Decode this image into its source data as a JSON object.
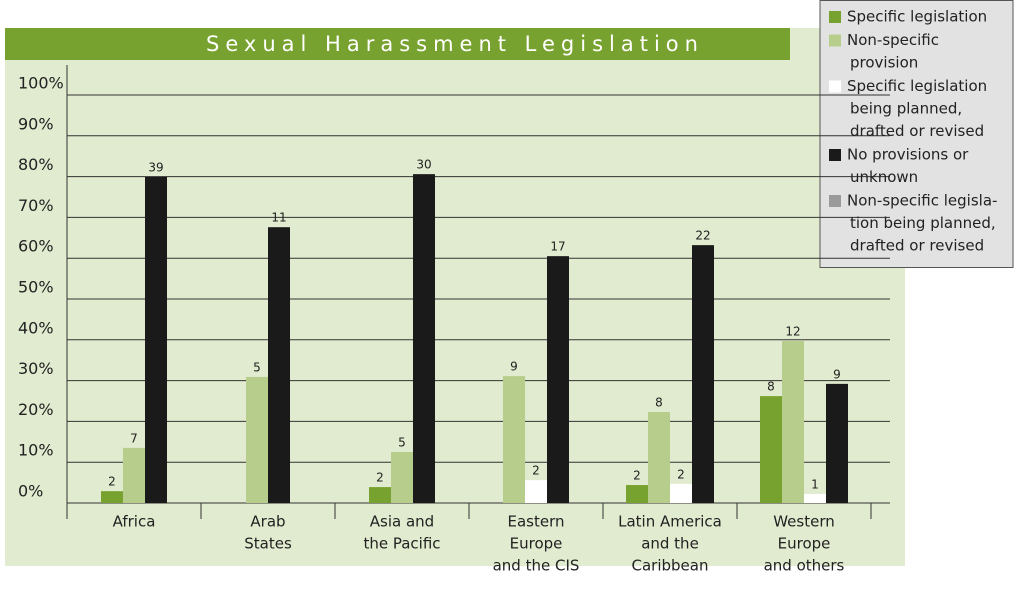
{
  "chart_data": {
    "type": "bar",
    "title": "Sexual Harassment Legislation",
    "categories": [
      [
        "Africa"
      ],
      [
        "Arab",
        "States"
      ],
      [
        "Asia and",
        "the Pacific"
      ],
      [
        "Eastern",
        "Europe",
        "and the CIS"
      ],
      [
        "Latin America",
        "and the",
        "Caribbean"
      ],
      [
        "Western",
        "Europe",
        "and others"
      ]
    ],
    "ylim": [
      0,
      100
    ],
    "yticks": [
      {
        "value": 0,
        "label": "0%"
      },
      {
        "value": 10,
        "label": "10%"
      },
      {
        "value": 20,
        "label": "20%"
      },
      {
        "value": 30,
        "label": "30%"
      },
      {
        "value": 40,
        "label": "40%"
      },
      {
        "value": 50,
        "label": "50%"
      },
      {
        "value": 60,
        "label": "60%"
      },
      {
        "value": 70,
        "label": "70%"
      },
      {
        "value": 80,
        "label": "80%"
      },
      {
        "value": 90,
        "label": "90%"
      },
      {
        "value": 100,
        "label": "100%"
      }
    ],
    "grid": true,
    "legend": "top-right",
    "series": [
      {
        "name": [
          "Specific legislation"
        ],
        "color": "#78a22f",
        "values": [
          2.9,
          null,
          3.9,
          null,
          4.4,
          26.2
        ],
        "counts": [
          2,
          null,
          2,
          null,
          2,
          8
        ]
      },
      {
        "name": [
          "Non-specific",
          "provision"
        ],
        "color": "#b6cd8b",
        "values": [
          13.5,
          30.9,
          12.5,
          31.1,
          22.3,
          39.7
        ],
        "counts": [
          7,
          5,
          5,
          9,
          8,
          12
        ]
      },
      {
        "name": [
          "Specific legislation",
          "being planned,",
          "drafted or revised"
        ],
        "color": "#ffffff",
        "values": [
          null,
          null,
          null,
          5.6,
          4.7,
          2.2
        ],
        "counts": [
          null,
          null,
          null,
          2,
          2,
          1
        ]
      },
      {
        "name": [
          "No provisions or",
          "unknown"
        ],
        "color": "#1a1a1a",
        "values": [
          79.9,
          67.6,
          80.6,
          60.5,
          63.2,
          29.2
        ],
        "counts": [
          39,
          11,
          30,
          17,
          22,
          9
        ]
      },
      {
        "name": [
          "Non-specific legisla-",
          "tion being planned,",
          "drafted or revised"
        ],
        "color": "#9a9a9a",
        "values": [
          null,
          null,
          null,
          null,
          null,
          null
        ],
        "counts": [
          null,
          null,
          null,
          null,
          null,
          null
        ]
      }
    ]
  }
}
